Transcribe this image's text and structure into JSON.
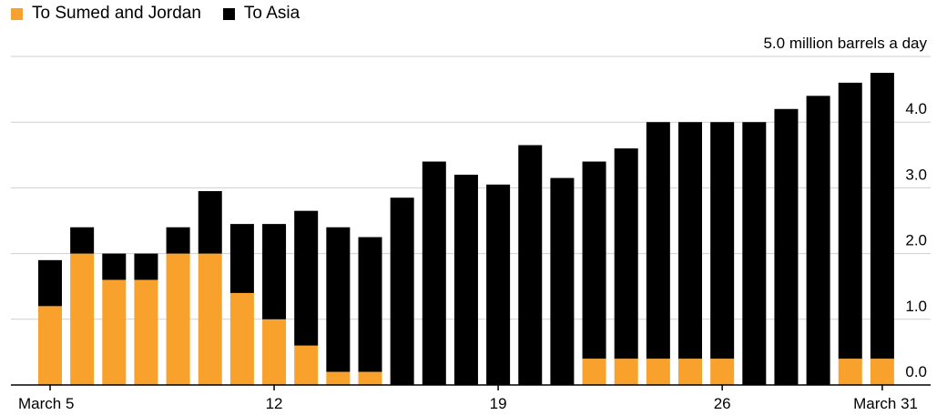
{
  "chart_data": {
    "type": "bar",
    "stacked": true,
    "unit_label": "5.0 million barrels a day",
    "x_tick_labels": [
      "March 5",
      "12",
      "19",
      "26",
      "March 31"
    ],
    "categories": [
      "March 5",
      "March 6",
      "March 7",
      "March 8",
      "March 9",
      "March 10",
      "March 11",
      "March 12",
      "March 13",
      "March 14",
      "March 15",
      "March 16",
      "March 17",
      "March 18",
      "March 19",
      "March 20",
      "March 21",
      "March 22",
      "March 23",
      "March 24",
      "March 25",
      "March 26",
      "March 27",
      "March 28",
      "March 29",
      "March 30",
      "March 31"
    ],
    "series": [
      {
        "name": "To Sumed and Jordan",
        "color": "#f9a12d",
        "values": [
          1.2,
          2.0,
          1.6,
          1.6,
          2.0,
          2.0,
          1.4,
          1.0,
          0.6,
          0.2,
          0.2,
          0,
          0,
          0,
          0,
          0,
          0,
          0.4,
          0.4,
          0.4,
          0.4,
          0.4,
          0,
          0,
          0,
          0.4,
          0.4
        ]
      },
      {
        "name": "To Asia",
        "color": "#000000",
        "values": [
          0.7,
          0.4,
          0.4,
          0.4,
          0.4,
          0.95,
          1.05,
          1.45,
          2.05,
          2.2,
          2.05,
          2.85,
          3.4,
          3.2,
          3.05,
          3.65,
          3.15,
          3.0,
          3.2,
          3.6,
          3.6,
          3.6,
          4.0,
          4.2,
          4.4,
          4.2,
          4.35
        ]
      }
    ],
    "y_ticks": [
      "0.0",
      "1.0",
      "2.0",
      "3.0",
      "4.0"
    ],
    "ylim": [
      0,
      5
    ],
    "grid": true,
    "legend_position": "top-left"
  }
}
